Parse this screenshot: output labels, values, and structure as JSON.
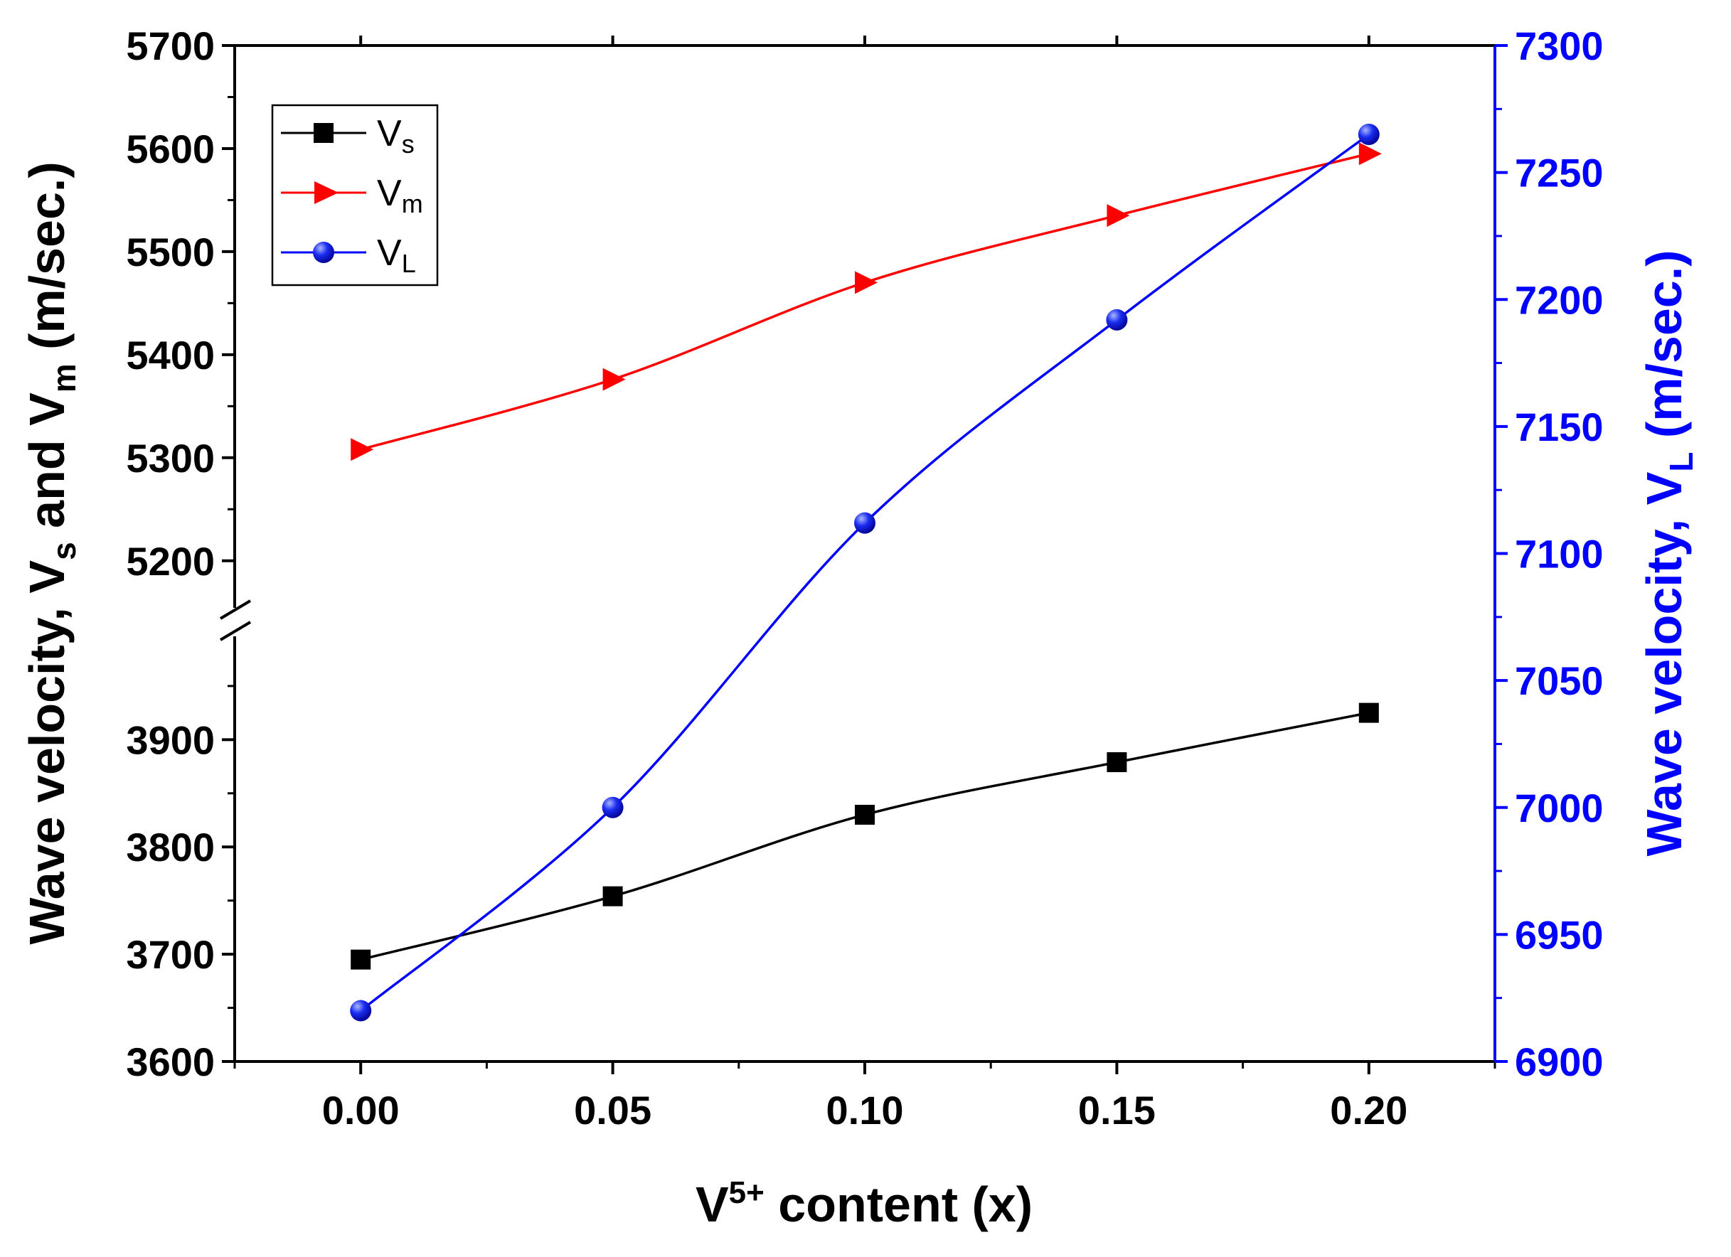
{
  "chart_data": {
    "type": "line",
    "xlabel": {
      "main": "V",
      "sup": "5+",
      "rest": " content (x)"
    },
    "ylabel_left": {
      "p1": "Wave velocity, V",
      "s1": "s",
      "p2": "  and V",
      "s2": "m",
      "p3": " (m/sec.)"
    },
    "ylabel_right": {
      "p1": "Wave velocity, V",
      "s1": "L",
      "p2": " (m/sec.)"
    },
    "x": [
      0.0,
      0.05,
      0.1,
      0.15,
      0.2
    ],
    "xlim": [
      -0.025,
      0.225
    ],
    "x_ticks": [
      "0.00",
      "0.05",
      "0.10",
      "0.15",
      "0.20"
    ],
    "y_left_upper_range": [
      5175,
      5700
    ],
    "y_left_upper_ticks": [
      "5200",
      "5300",
      "5400",
      "5500",
      "5600",
      "5700"
    ],
    "y_left_lower_range": [
      3600,
      3995
    ],
    "y_left_lower_ticks": [
      "3600",
      "3700",
      "3800",
      "3900"
    ],
    "y_right_range": [
      6900,
      7300
    ],
    "y_right_ticks": [
      "6900",
      "6950",
      "7000",
      "7050",
      "7100",
      "7150",
      "7200",
      "7250",
      "7300"
    ],
    "series": [
      {
        "name": "Vs",
        "label_main": "V",
        "label_sub": "s",
        "axis": "left-lower",
        "marker": "square",
        "color": "#000000",
        "values": [
          3695,
          3754,
          3830,
          3879,
          3925
        ]
      },
      {
        "name": "Vm",
        "label_main": "V",
        "label_sub": "m",
        "axis": "left-upper",
        "marker": "triangle-right",
        "color": "#ff0000",
        "values": [
          5308,
          5376,
          5470,
          5535,
          5595
        ]
      },
      {
        "name": "VL",
        "label_main": "V",
        "label_sub": "L",
        "axis": "right",
        "marker": "sphere",
        "color": "#0000ff",
        "values": [
          6920,
          7000,
          7112,
          7192,
          7265
        ]
      }
    ],
    "legend_position": "top-left",
    "axis_break": "left"
  }
}
